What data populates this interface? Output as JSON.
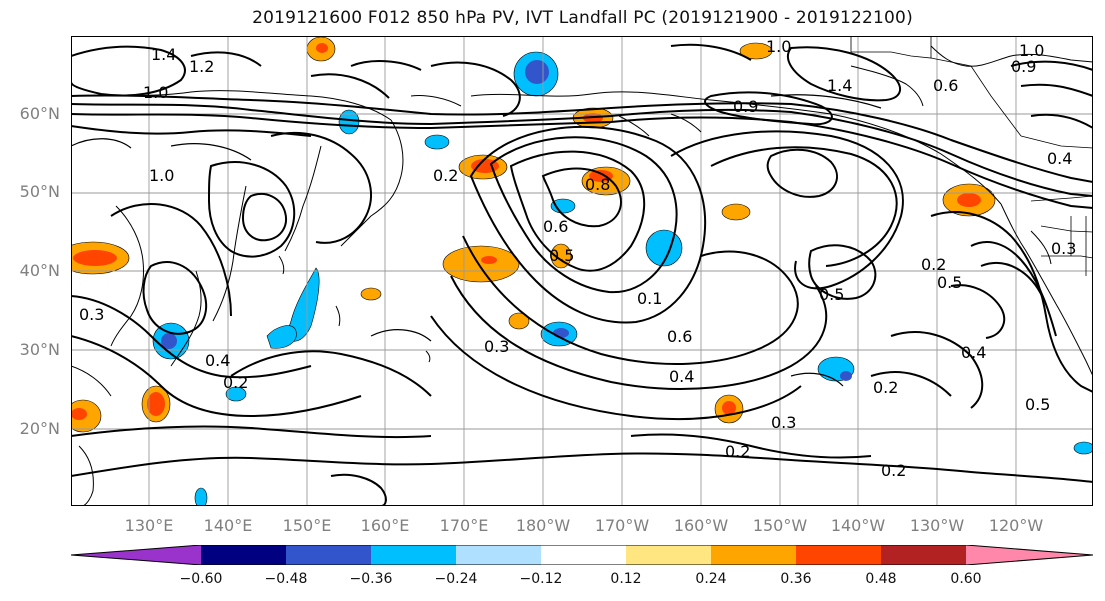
{
  "title": "2019121600 F012 850 hPa PV, IVT Landfall PC (2019121900 - 2019122100)",
  "lat_labels": [
    "60°N",
    "50°N",
    "40°N",
    "30°N",
    "20°N"
  ],
  "lon_labels": [
    "130°E",
    "140°E",
    "150°E",
    "160°E",
    "170°E",
    "180°W",
    "170°W",
    "160°W",
    "150°W",
    "140°W",
    "130°W",
    "120°W"
  ],
  "colorbar": {
    "colors": [
      "#9933cc",
      "#000080",
      "#3355cc",
      "#00bfff",
      "#b0e0ff",
      "#ffffff",
      "#ffe680",
      "#ffa500",
      "#ff4500",
      "#b22222",
      "#ff88aa"
    ],
    "tick_labels": [
      "−0.60",
      "−0.48",
      "−0.36",
      "−0.24",
      "−0.12",
      "0.12",
      "0.24",
      "0.36",
      "0.48",
      "0.60"
    ]
  },
  "contour_labels": [
    "1.4",
    "1.2",
    "1.0",
    "1.0",
    "1.0",
    "1.4",
    "0.9",
    "0.8",
    "0.6",
    "0.2",
    "0.5",
    "0.5",
    "0.1",
    "0.6",
    "0.4",
    "0.3",
    "0.2",
    "0.2",
    "0.5",
    "0.2",
    "0.3",
    "0.2",
    "0.3",
    "0.4",
    "0.5",
    "0.2",
    "0.3",
    "0.4",
    "0.4",
    "0.6",
    "0.9",
    "1.0"
  ]
}
